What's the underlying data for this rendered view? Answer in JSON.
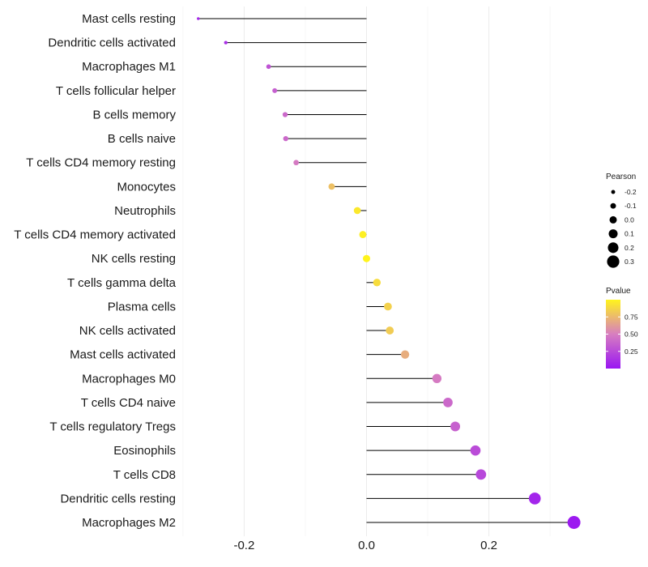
{
  "chart_data": {
    "type": "lollipop",
    "title": "",
    "xlabel": "",
    "ylabel": "",
    "xlim": [
      -0.3,
      0.35
    ],
    "xticks": [
      -0.2,
      0.0,
      0.2
    ],
    "xtick_labels": [
      "-0.2",
      "0.0",
      "0.2"
    ],
    "grid": true,
    "categories": [
      "Mast cells resting",
      "Dendritic cells activated",
      "Macrophages M1",
      "T cells follicular helper",
      "B cells memory",
      "B cells naive",
      "T cells CD4 memory resting",
      "Monocytes",
      "Neutrophils",
      "T cells CD4 memory activated",
      "NK cells resting",
      "T cells gamma delta",
      "Plasma cells",
      "NK cells activated",
      "Mast cells activated",
      "Macrophages M0",
      "T cells CD4 naive",
      "T cells regulatory  Tregs ",
      "Eosinophils",
      "T cells CD8",
      "Dendritic cells resting",
      "Macrophages M2"
    ],
    "pearson": [
      -0.275,
      -0.23,
      -0.16,
      -0.15,
      -0.133,
      -0.132,
      -0.115,
      -0.057,
      -0.015,
      -0.006,
      0.0,
      0.017,
      0.035,
      0.038,
      0.063,
      0.115,
      0.133,
      0.145,
      0.178,
      0.187,
      0.275,
      0.339
    ],
    "pvalue": [
      0.08,
      0.12,
      0.3,
      0.35,
      0.4,
      0.4,
      0.48,
      0.78,
      0.95,
      0.98,
      1.0,
      0.9,
      0.85,
      0.83,
      0.7,
      0.48,
      0.4,
      0.36,
      0.26,
      0.24,
      0.07,
      0.02
    ],
    "legend": {
      "size_title": "Pearson",
      "size_breaks": [
        -0.2,
        -0.1,
        0.0,
        0.1,
        0.2,
        0.3
      ],
      "size_labels": [
        "-0.2",
        "-0.1",
        "0.0",
        "0.1",
        "0.2",
        "0.3"
      ],
      "color_title": "Pvalue",
      "color_breaks": [
        0.75,
        0.5,
        0.25
      ],
      "color_labels": [
        "0.75",
        "0.50",
        "0.25"
      ],
      "color_low": "#9a16f2",
      "color_mid": "#d77ec0",
      "color_high": "#fff41c",
      "placement": "right"
    }
  }
}
